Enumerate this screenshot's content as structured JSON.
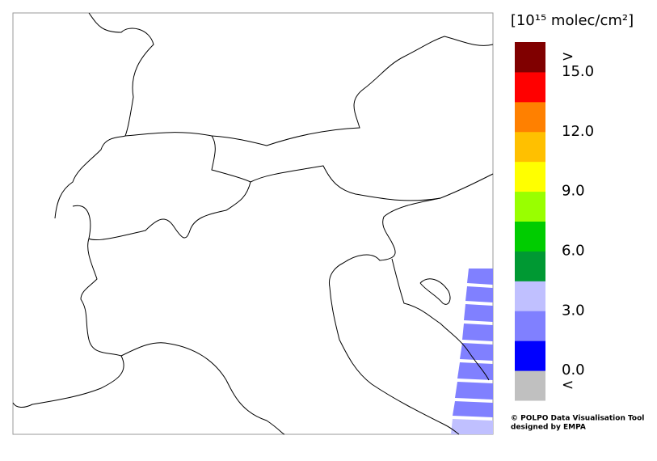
{
  "colorbar": {
    "unit": "[10¹⁵ molec/cm²]",
    "colors": [
      "#c0c0c0",
      "#0000ff",
      "#8080ff",
      "#c0c0ff",
      "#009933",
      "#00cc00",
      "#99ff00",
      "#ffff00",
      "#ffc000",
      "#ff8000",
      "#ff0000",
      "#800000"
    ],
    "lim": [
      0,
      15
    ],
    "ticks": [
      {
        "value": 0,
        "label": "0.0"
      },
      {
        "value": 3,
        "label": "3.0"
      },
      {
        "value": 6,
        "label": "6.0"
      },
      {
        "value": 9,
        "label": "9.0"
      },
      {
        "value": 12,
        "label": "12.0"
      },
      {
        "value": 15,
        "label": "15.0"
      }
    ],
    "over_label": ">",
    "under_label": "<"
  },
  "footer": [
    "© POLPO Data Visualisation Tool",
    "designed by EMPA"
  ]
}
